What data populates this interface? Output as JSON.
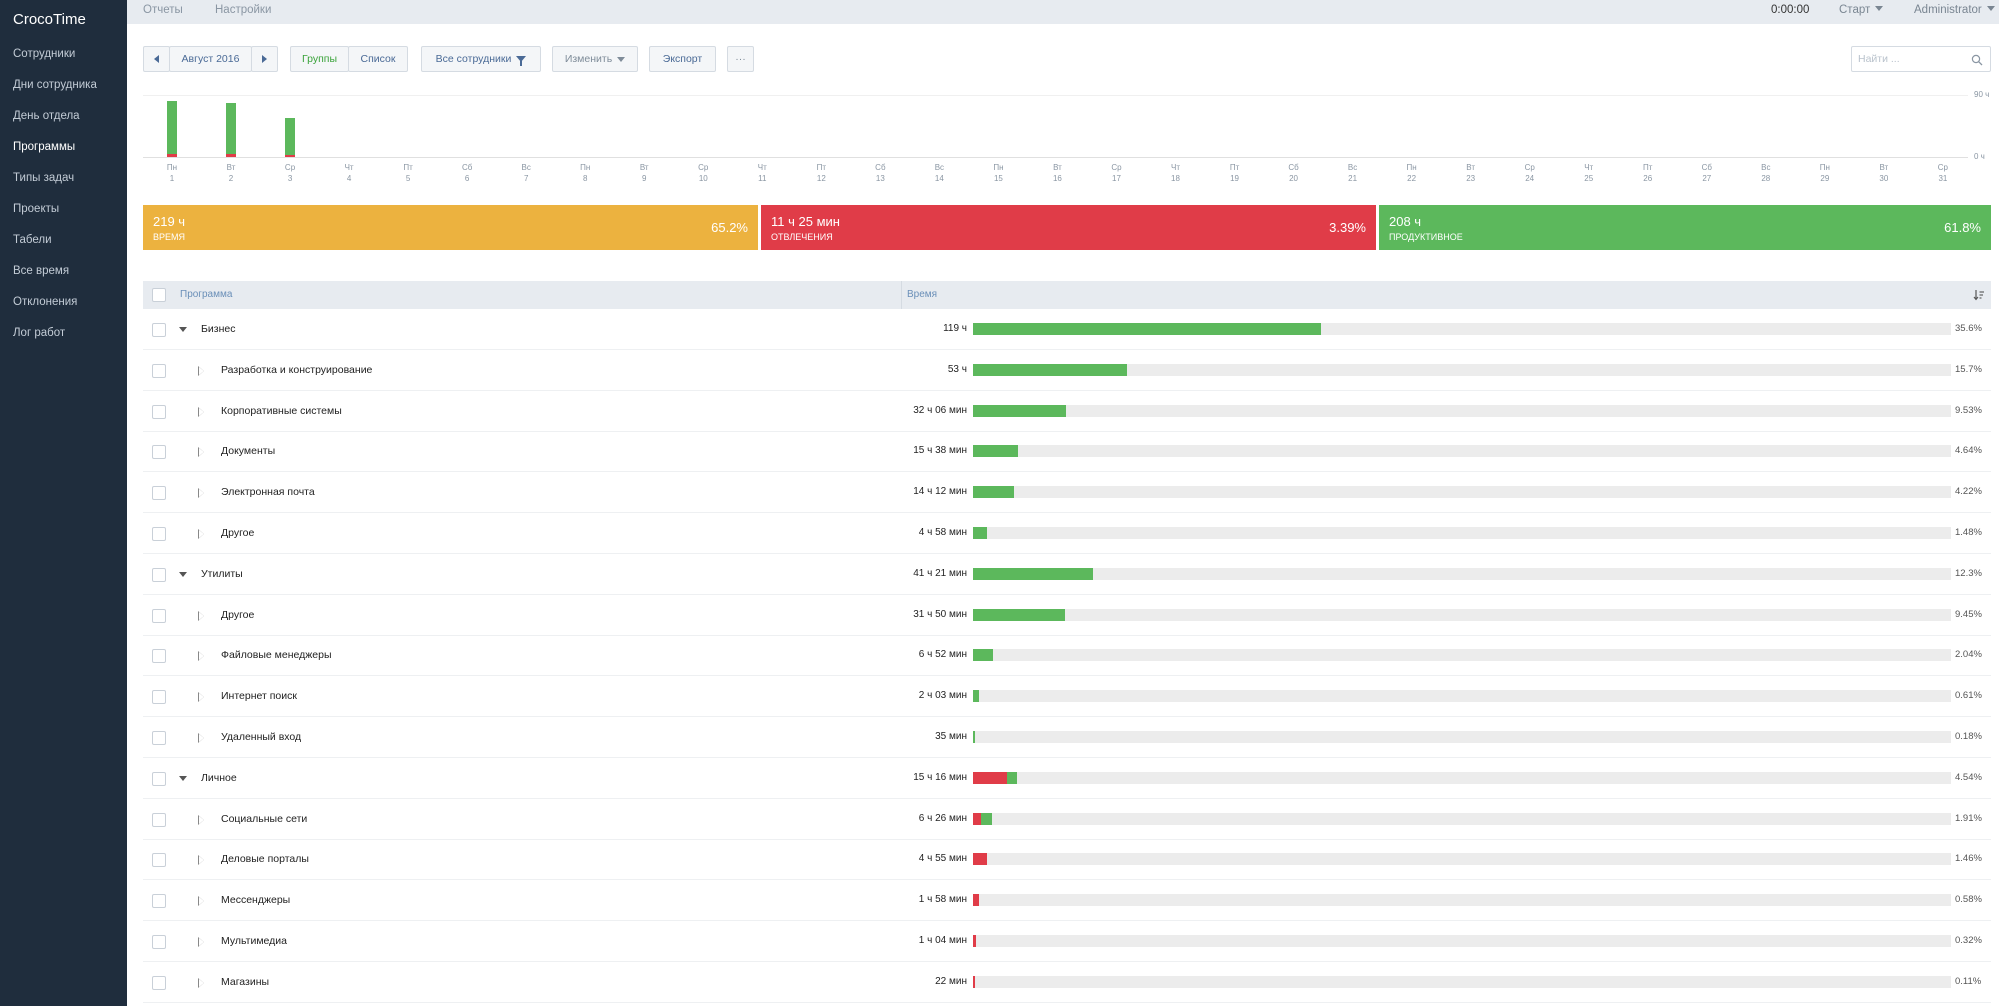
{
  "app": {
    "logo": "CrocoTime"
  },
  "sidebar": {
    "items": [
      {
        "label": "Сотрудники",
        "active": false
      },
      {
        "label": "Дни сотрудника",
        "active": false
      },
      {
        "label": "День отдела",
        "active": false
      },
      {
        "label": "Программы",
        "active": true
      },
      {
        "label": "Типы задач",
        "active": false
      },
      {
        "label": "Проекты",
        "active": false
      },
      {
        "label": "Табели",
        "active": false
      },
      {
        "label": "Все время",
        "active": false
      },
      {
        "label": "Отклонения",
        "active": false
      },
      {
        "label": "Лог работ",
        "active": false
      }
    ]
  },
  "topbar": {
    "tabs": [
      {
        "label": "Отчеты",
        "active": true
      },
      {
        "label": "Настройки",
        "active": false
      }
    ],
    "timer": "0:00:00",
    "start_label": "Старт",
    "user_label": "Administrator"
  },
  "toolbar": {
    "period_label": "Август 2016",
    "groups_label": "Группы",
    "list_label": "Список",
    "employees_label": "Все сотрудники",
    "edit_label": "Изменить",
    "export_label": "Экспорт",
    "more_label": "···",
    "search_placeholder": "Найти ..."
  },
  "colors": {
    "green": "#5cb85c",
    "red": "#e03c48",
    "orange": "#ecb23f",
    "sidebar": "#1f2d3d",
    "track": "#ececec"
  },
  "chart_data": {
    "type": "bar",
    "stacked": true,
    "y_top_label": "90 ч",
    "y_bottom_label": "0 ч",
    "ylim": [
      0,
      90
    ],
    "days": [
      {
        "dow": "Пн",
        "num": "1"
      },
      {
        "dow": "Вт",
        "num": "2"
      },
      {
        "dow": "Ср",
        "num": "3"
      },
      {
        "dow": "Чт",
        "num": "4"
      },
      {
        "dow": "Пт",
        "num": "5"
      },
      {
        "dow": "Сб",
        "num": "6"
      },
      {
        "dow": "Вс",
        "num": "7"
      },
      {
        "dow": "Пн",
        "num": "8"
      },
      {
        "dow": "Вт",
        "num": "9"
      },
      {
        "dow": "Ср",
        "num": "10"
      },
      {
        "dow": "Чт",
        "num": "11"
      },
      {
        "dow": "Пт",
        "num": "12"
      },
      {
        "dow": "Сб",
        "num": "13"
      },
      {
        "dow": "Вс",
        "num": "14"
      },
      {
        "dow": "Пн",
        "num": "15"
      },
      {
        "dow": "Вт",
        "num": "16"
      },
      {
        "dow": "Ср",
        "num": "17"
      },
      {
        "dow": "Чт",
        "num": "18"
      },
      {
        "dow": "Пт",
        "num": "19"
      },
      {
        "dow": "Сб",
        "num": "20"
      },
      {
        "dow": "Вс",
        "num": "21"
      },
      {
        "dow": "Пн",
        "num": "22"
      },
      {
        "dow": "Вт",
        "num": "23"
      },
      {
        "dow": "Ср",
        "num": "24"
      },
      {
        "dow": "Чт",
        "num": "25"
      },
      {
        "dow": "Пт",
        "num": "26"
      },
      {
        "dow": "Сб",
        "num": "27"
      },
      {
        "dow": "Вс",
        "num": "28"
      },
      {
        "dow": "Пн",
        "num": "29"
      },
      {
        "dow": "Вт",
        "num": "30"
      },
      {
        "dow": "Ср",
        "num": "31"
      }
    ],
    "series": [
      {
        "color": "#5cb85c",
        "values": [
          77,
          74,
          54,
          0,
          0,
          0,
          0,
          0,
          0,
          0,
          0,
          0,
          0,
          0,
          0,
          0,
          0,
          0,
          0,
          0,
          0,
          0,
          0,
          0,
          0,
          0,
          0,
          0,
          0,
          0,
          0
        ]
      },
      {
        "color": "#e03c48",
        "values": [
          4,
          4,
          3,
          0,
          0,
          0,
          0,
          0,
          0,
          0,
          0,
          0,
          0,
          0,
          0,
          0,
          0,
          0,
          0,
          0,
          0,
          0,
          0,
          0,
          0,
          0,
          0,
          0,
          0,
          0,
          0
        ]
      }
    ]
  },
  "summary": [
    {
      "value": "219 ч",
      "label": "ВРЕМЯ",
      "percent": "65.2%",
      "color": "#ecb23f"
    },
    {
      "value": "11 ч 25 мин",
      "label": "ОТВЛЕЧЕНИЯ",
      "percent": "3.39%",
      "color": "#e03c48"
    },
    {
      "value": "208 ч",
      "label": "ПРОДУКТИВНОЕ",
      "percent": "61.8%",
      "color": "#5cb85c"
    }
  ],
  "table": {
    "columns": {
      "program": "Программа",
      "time": "Время"
    },
    "rows": [
      {
        "name": "Бизнес",
        "group": true,
        "time": "119 ч",
        "percent": "35.6%",
        "green": 0.356,
        "red": 0
      },
      {
        "name": "Разработка и конструирование",
        "group": false,
        "time": "53 ч",
        "percent": "15.7%",
        "green": 0.157,
        "red": 0
      },
      {
        "name": "Корпоративные системы",
        "group": false,
        "time": "32 ч 06 мин",
        "percent": "9.53%",
        "green": 0.0953,
        "red": 0
      },
      {
        "name": "Документы",
        "group": false,
        "time": "15 ч 38 мин",
        "percent": "4.64%",
        "green": 0.0464,
        "red": 0
      },
      {
        "name": "Электронная почта",
        "group": false,
        "time": "14 ч 12 мин",
        "percent": "4.22%",
        "green": 0.0422,
        "red": 0
      },
      {
        "name": "Другое",
        "group": false,
        "time": "4 ч 58 мин",
        "percent": "1.48%",
        "green": 0.0148,
        "red": 0
      },
      {
        "name": "Утилиты",
        "group": true,
        "time": "41 ч 21 мин",
        "percent": "12.3%",
        "green": 0.123,
        "red": 0
      },
      {
        "name": "Другое",
        "group": false,
        "time": "31 ч 50 мин",
        "percent": "9.45%",
        "green": 0.0945,
        "red": 0
      },
      {
        "name": "Файловые менеджеры",
        "group": false,
        "time": "6 ч 52 мин",
        "percent": "2.04%",
        "green": 0.0204,
        "red": 0
      },
      {
        "name": "Интернет поиск",
        "group": false,
        "time": "2 ч 03 мин",
        "percent": "0.61%",
        "green": 0.0061,
        "red": 0
      },
      {
        "name": "Удаленный вход",
        "group": false,
        "time": "35 мин",
        "percent": "0.18%",
        "green": 0.0018,
        "red": 0
      },
      {
        "name": "Личное",
        "group": true,
        "time": "15 ч 16 мин",
        "percent": "4.54%",
        "green": 0.011,
        "red": 0.0344
      },
      {
        "name": "Социальные сети",
        "group": false,
        "time": "6 ч 26 мин",
        "percent": "1.91%",
        "green": 0.011,
        "red": 0.0081
      },
      {
        "name": "Деловые порталы",
        "group": false,
        "time": "4 ч 55 мин",
        "percent": "1.46%",
        "green": 0,
        "red": 0.0146
      },
      {
        "name": "Мессенджеры",
        "group": false,
        "time": "1 ч 58 мин",
        "percent": "0.58%",
        "green": 0,
        "red": 0.0058
      },
      {
        "name": "Мультимедиа",
        "group": false,
        "time": "1 ч 04 мин",
        "percent": "0.32%",
        "green": 0,
        "red": 0.0032
      },
      {
        "name": "Магазины",
        "group": false,
        "time": "22 мин",
        "percent": "0.11%",
        "green": 0,
        "red": 0.0011
      }
    ]
  }
}
